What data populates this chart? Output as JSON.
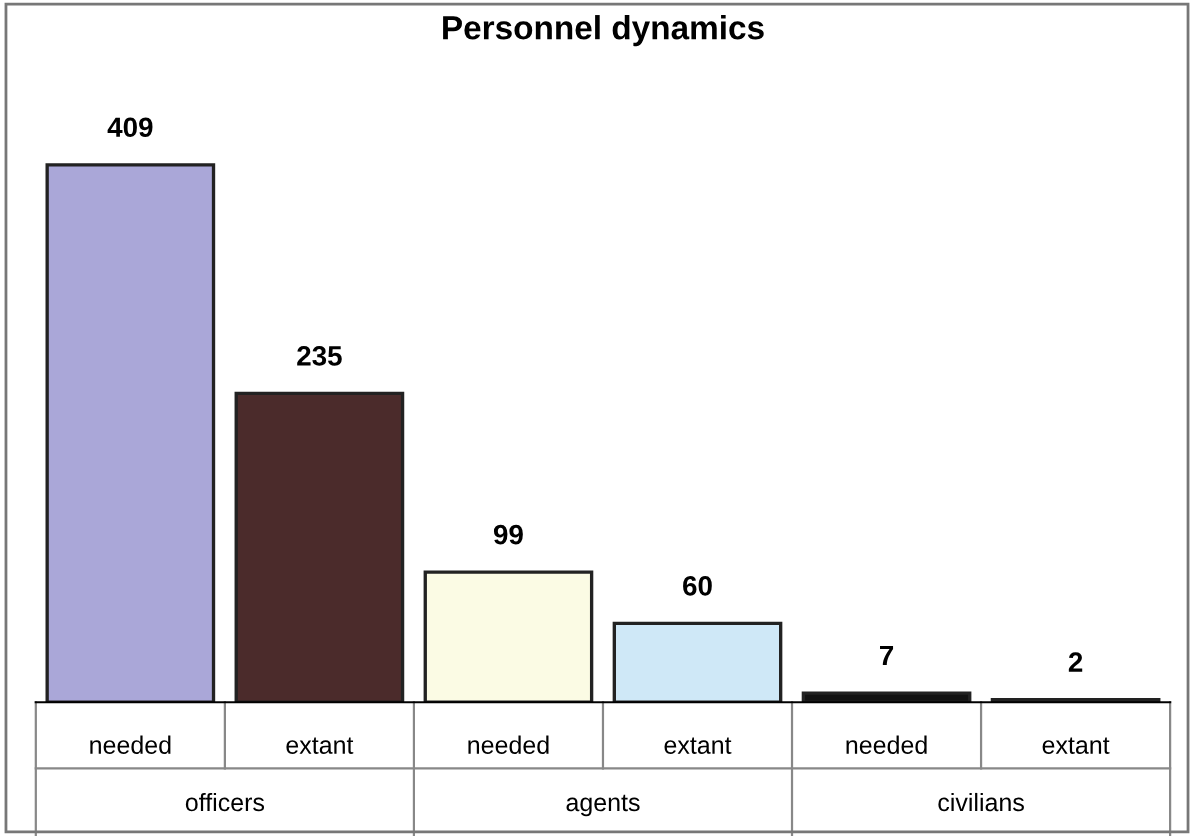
{
  "chart_data": {
    "type": "bar",
    "title": "Personnel dynamics",
    "categories": [
      "needed",
      "extant",
      "needed",
      "extant",
      "needed",
      "extant"
    ],
    "values": [
      409,
      235,
      99,
      60,
      7,
      2
    ],
    "colors": [
      "#aaa7d8",
      "#4b2b2b",
      "#fbfbe4",
      "#cfe8f7",
      "#111111",
      "#2a2a2a"
    ],
    "data_labels": true,
    "grid": false,
    "legend": false,
    "annotations": [
      "officers",
      "agents",
      "civilians"
    ]
  }
}
